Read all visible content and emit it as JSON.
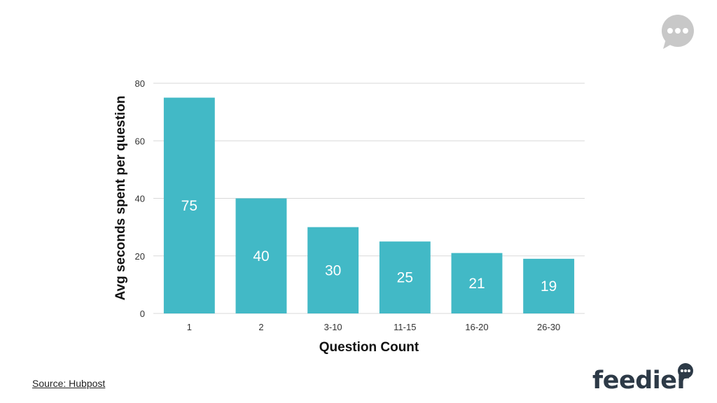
{
  "chart_data": {
    "type": "bar",
    "categories": [
      "1",
      "2",
      "3-10",
      "11-15",
      "16-20",
      "26-30"
    ],
    "values": [
      75,
      40,
      30,
      25,
      21,
      19
    ],
    "data_labels": [
      "75",
      "40",
      "30",
      "25",
      "21",
      "19"
    ],
    "xlabel": "Question Count",
    "ylabel": "Avg seconds spent per question",
    "ylim": [
      0,
      80
    ],
    "yticks": [
      "0",
      "20",
      "40",
      "60",
      "80"
    ],
    "grid": true,
    "bar_color": "#42b9c6",
    "grid_color": "#d9d9d9"
  },
  "footer": {
    "source": "Source: Hubpost",
    "brand": "feedier"
  },
  "icons": {
    "top_right": "chat-bubble-icon",
    "brand_mark": "speech-bubble-icon"
  },
  "colors": {
    "chat_badge": "#c8c8c8",
    "brand_text": "#2d3a47"
  }
}
